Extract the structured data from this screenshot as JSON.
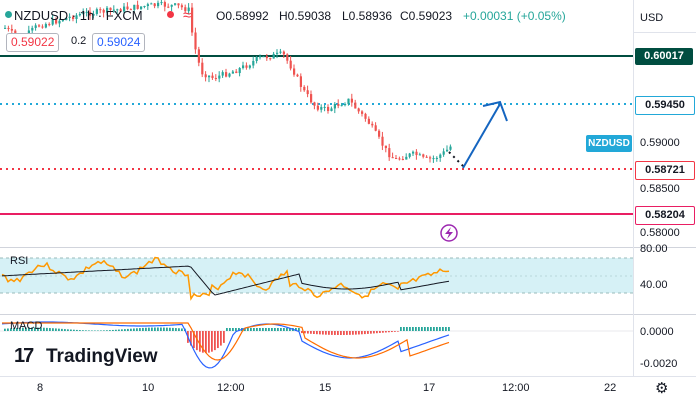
{
  "symbol": {
    "name": "NZDUSD",
    "interval": "1h",
    "exchange": "FXCM",
    "separator": "·",
    "full": "NZDUSD · 1h · FXCM",
    "status_dot_color": "#26a69a",
    "indicator_glyph": "≈"
  },
  "ohlc": {
    "open": "O0.58992",
    "high": "H0.59038",
    "low": "L0.58936",
    "close": "C0.59023",
    "change": "+0.00031 (+0.05%)",
    "change_color": "#26a69a"
  },
  "order": {
    "sell_price": "0.59022",
    "spread": "0.2",
    "buy_price": "0.59024",
    "sell_color": "#f23645",
    "buy_color": "#2962ff"
  },
  "price_axis": {
    "currency": "USD",
    "ticks": [
      "0.59000",
      "0.58500",
      "0.58000"
    ],
    "levels": [
      {
        "label": "0.60017",
        "color": "#004d40",
        "text_color": "#ffffff"
      },
      {
        "label": "0.59450",
        "color": "#ffffff",
        "text_color": "#131722"
      },
      {
        "label": "NZDUSD",
        "color": "#22a8d8",
        "text_color": "#ffffff"
      },
      {
        "label": "0.58721",
        "color": "#ffffff",
        "text_color": "#131722"
      },
      {
        "label": "0.58204",
        "color": "#ffffff",
        "text_color": "#131722"
      }
    ]
  },
  "rsi": {
    "label": "RSI",
    "axis_ticks": [
      "80.00",
      "40.00"
    ],
    "band_color": "#d6f1f6",
    "line_color": "#ff9800",
    "ma_color": "#131722"
  },
  "macd": {
    "label": "MACD",
    "axis_ticks": [
      "0.0000",
      "-0.0020"
    ],
    "macd_color": "#2962ff",
    "signal_color": "#ff6d00",
    "hist_pos_color": "#26a69a",
    "hist_neg_color": "#ef5350"
  },
  "time_axis": {
    "labels": [
      "8",
      "10",
      "12:00",
      "15",
      "17",
      "12:00",
      "22"
    ]
  },
  "branding": {
    "logo_mark": "17",
    "name": "TradingView"
  },
  "colors": {
    "candle_up": "#26a69a",
    "candle_down": "#ef5350",
    "resistance_line": "#004d40",
    "target_line": "#22a8d8",
    "entry_line": "#f23645",
    "support_line": "#e91e63",
    "arrow": "#1565c0"
  },
  "icons": {
    "settings": "gear-icon",
    "flash": "lightning-icon"
  }
}
